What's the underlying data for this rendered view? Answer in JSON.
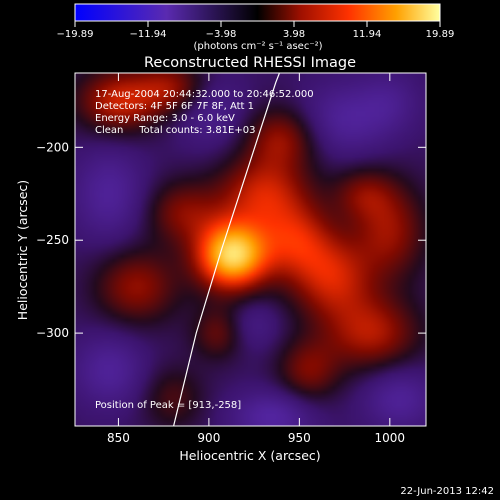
{
  "chart_data": {
    "type": "heatmap",
    "title": "Reconstructed RHESSI Image",
    "xlabel": "Heliocentric X (arcsec)",
    "ylabel": "Heliocentric Y (arcsec)",
    "xlim": [
      826,
      1020
    ],
    "ylim": [
      -350,
      -160
    ],
    "xticks": [
      850,
      900,
      950,
      1000
    ],
    "yticks": [
      -200,
      -250,
      -300
    ],
    "ytick_labels": [
      "−200",
      "−250",
      "−300"
    ],
    "annotations": {
      "time_range": "17-Aug-2004 20:44:32.000 to 20:46:52.000",
      "detectors": "Detectors: 4F 5F 6F 7F 8F, Att 1",
      "energy": "Energy Range: 3.0 - 6.0 keV",
      "method": "Clean     Total counts: 3.81E+03",
      "peak": "Position of Peak = [913,-258]"
    },
    "peak": {
      "x": 913,
      "y": -258
    },
    "colorbar": {
      "ticks": [
        "−19.89",
        "−11.94",
        "−3.98",
        "3.98",
        "11.94",
        "19.89"
      ],
      "unit": "(photons cm⁻² s⁻¹ asec⁻²)",
      "range": [
        -19.89,
        19.89
      ]
    },
    "intensity_blobs": [
      {
        "x": 913,
        "y": -258,
        "amp": 1.0,
        "sx": 14,
        "sy": 13
      },
      {
        "x": 930,
        "y": -225,
        "amp": 0.45,
        "sx": 18,
        "sy": 14
      },
      {
        "x": 948,
        "y": -250,
        "amp": 0.4,
        "sx": 14,
        "sy": 14
      },
      {
        "x": 968,
        "y": -270,
        "amp": 0.45,
        "sx": 16,
        "sy": 16
      },
      {
        "x": 990,
        "y": -300,
        "amp": 0.4,
        "sx": 18,
        "sy": 14
      },
      {
        "x": 1000,
        "y": -245,
        "amp": 0.35,
        "sx": 14,
        "sy": 18
      },
      {
        "x": 860,
        "y": -275,
        "amp": 0.35,
        "sx": 16,
        "sy": 14
      },
      {
        "x": 885,
        "y": -235,
        "amp": 0.3,
        "sx": 14,
        "sy": 12
      },
      {
        "x": 850,
        "y": -175,
        "amp": 0.45,
        "sx": 16,
        "sy": 12
      },
      {
        "x": 880,
        "y": -168,
        "amp": 0.35,
        "sx": 14,
        "sy": 10
      },
      {
        "x": 940,
        "y": -195,
        "amp": 0.35,
        "sx": 14,
        "sy": 12
      },
      {
        "x": 955,
        "y": -320,
        "amp": 0.3,
        "sx": 12,
        "sy": 12
      },
      {
        "x": 880,
        "y": -335,
        "amp": 0.2,
        "sx": 12,
        "sy": 12
      },
      {
        "x": 905,
        "y": -300,
        "amp": 0.25,
        "sx": 10,
        "sy": 10
      },
      {
        "x": 985,
        "y": -225,
        "amp": 0.25,
        "sx": 12,
        "sy": 10
      },
      {
        "x": 900,
        "y": -180,
        "amp": -0.2,
        "sx": 14,
        "sy": 14
      },
      {
        "x": 975,
        "y": -185,
        "amp": -0.25,
        "sx": 18,
        "sy": 14
      },
      {
        "x": 845,
        "y": -225,
        "amp": -0.25,
        "sx": 14,
        "sy": 18
      },
      {
        "x": 845,
        "y": -320,
        "amp": -0.25,
        "sx": 14,
        "sy": 14
      },
      {
        "x": 935,
        "y": -345,
        "amp": -0.3,
        "sx": 16,
        "sy": 10
      },
      {
        "x": 1005,
        "y": -335,
        "amp": -0.25,
        "sx": 14,
        "sy": 12
      },
      {
        "x": 1000,
        "y": -175,
        "amp": -0.15,
        "sx": 12,
        "sy": 12
      },
      {
        "x": 925,
        "y": -295,
        "amp": -0.15,
        "sx": 10,
        "sy": 10
      }
    ],
    "limb_curve": [
      [
        880,
        -352
      ],
      [
        893,
        -300
      ],
      [
        907,
        -255
      ],
      [
        922,
        -210
      ],
      [
        937,
        -165
      ],
      [
        939,
        -160
      ]
    ]
  },
  "footer": {
    "timestamp": "22-Jun-2013 12:42"
  }
}
